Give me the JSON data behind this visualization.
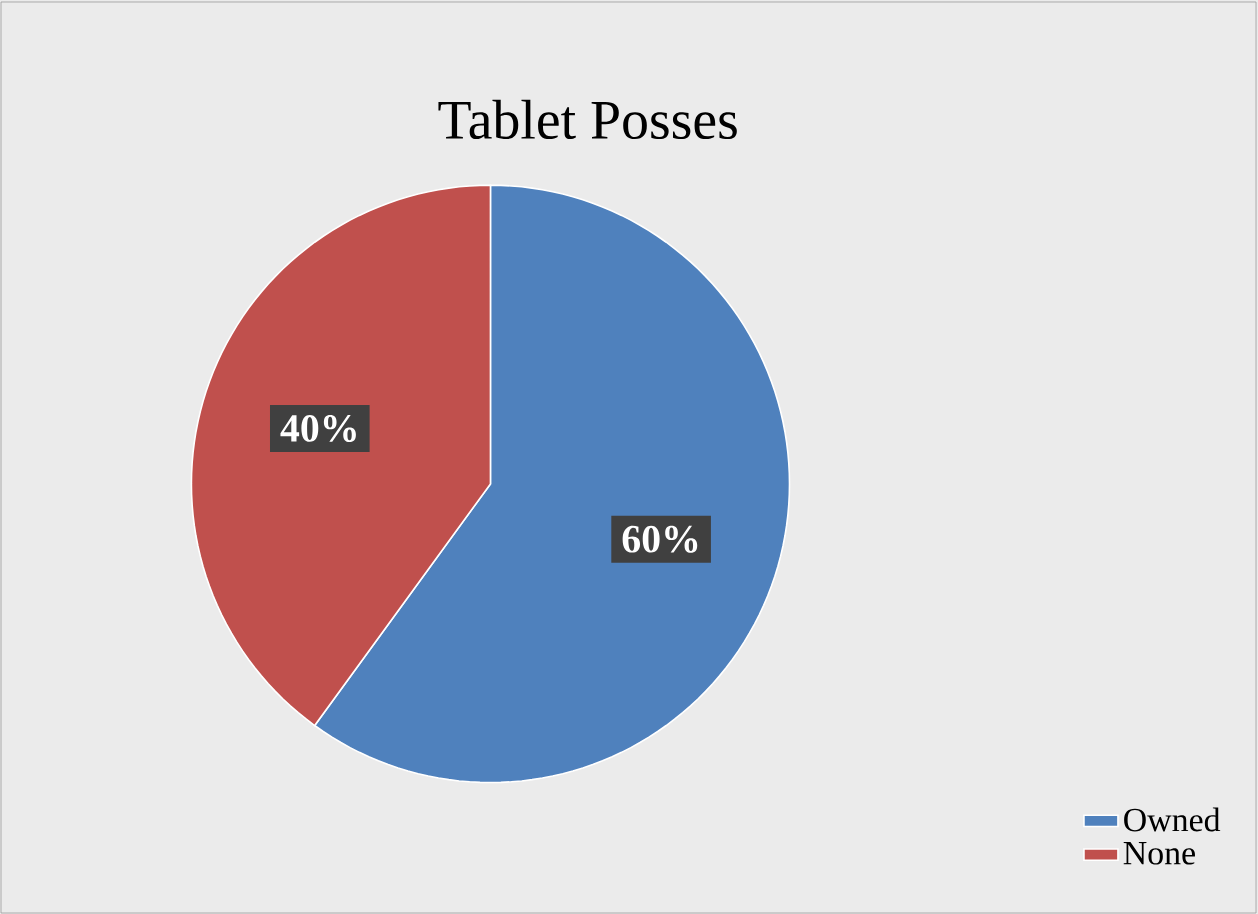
{
  "chart_data": {
    "type": "pie",
    "title": "Tablet Posses",
    "categories": [
      "Owned",
      "None"
    ],
    "values": [
      60,
      40
    ],
    "colors": [
      "#4f81bd",
      "#c0504d"
    ],
    "value_labels": [
      "60%",
      "40%"
    ],
    "legend": "bottom right"
  }
}
